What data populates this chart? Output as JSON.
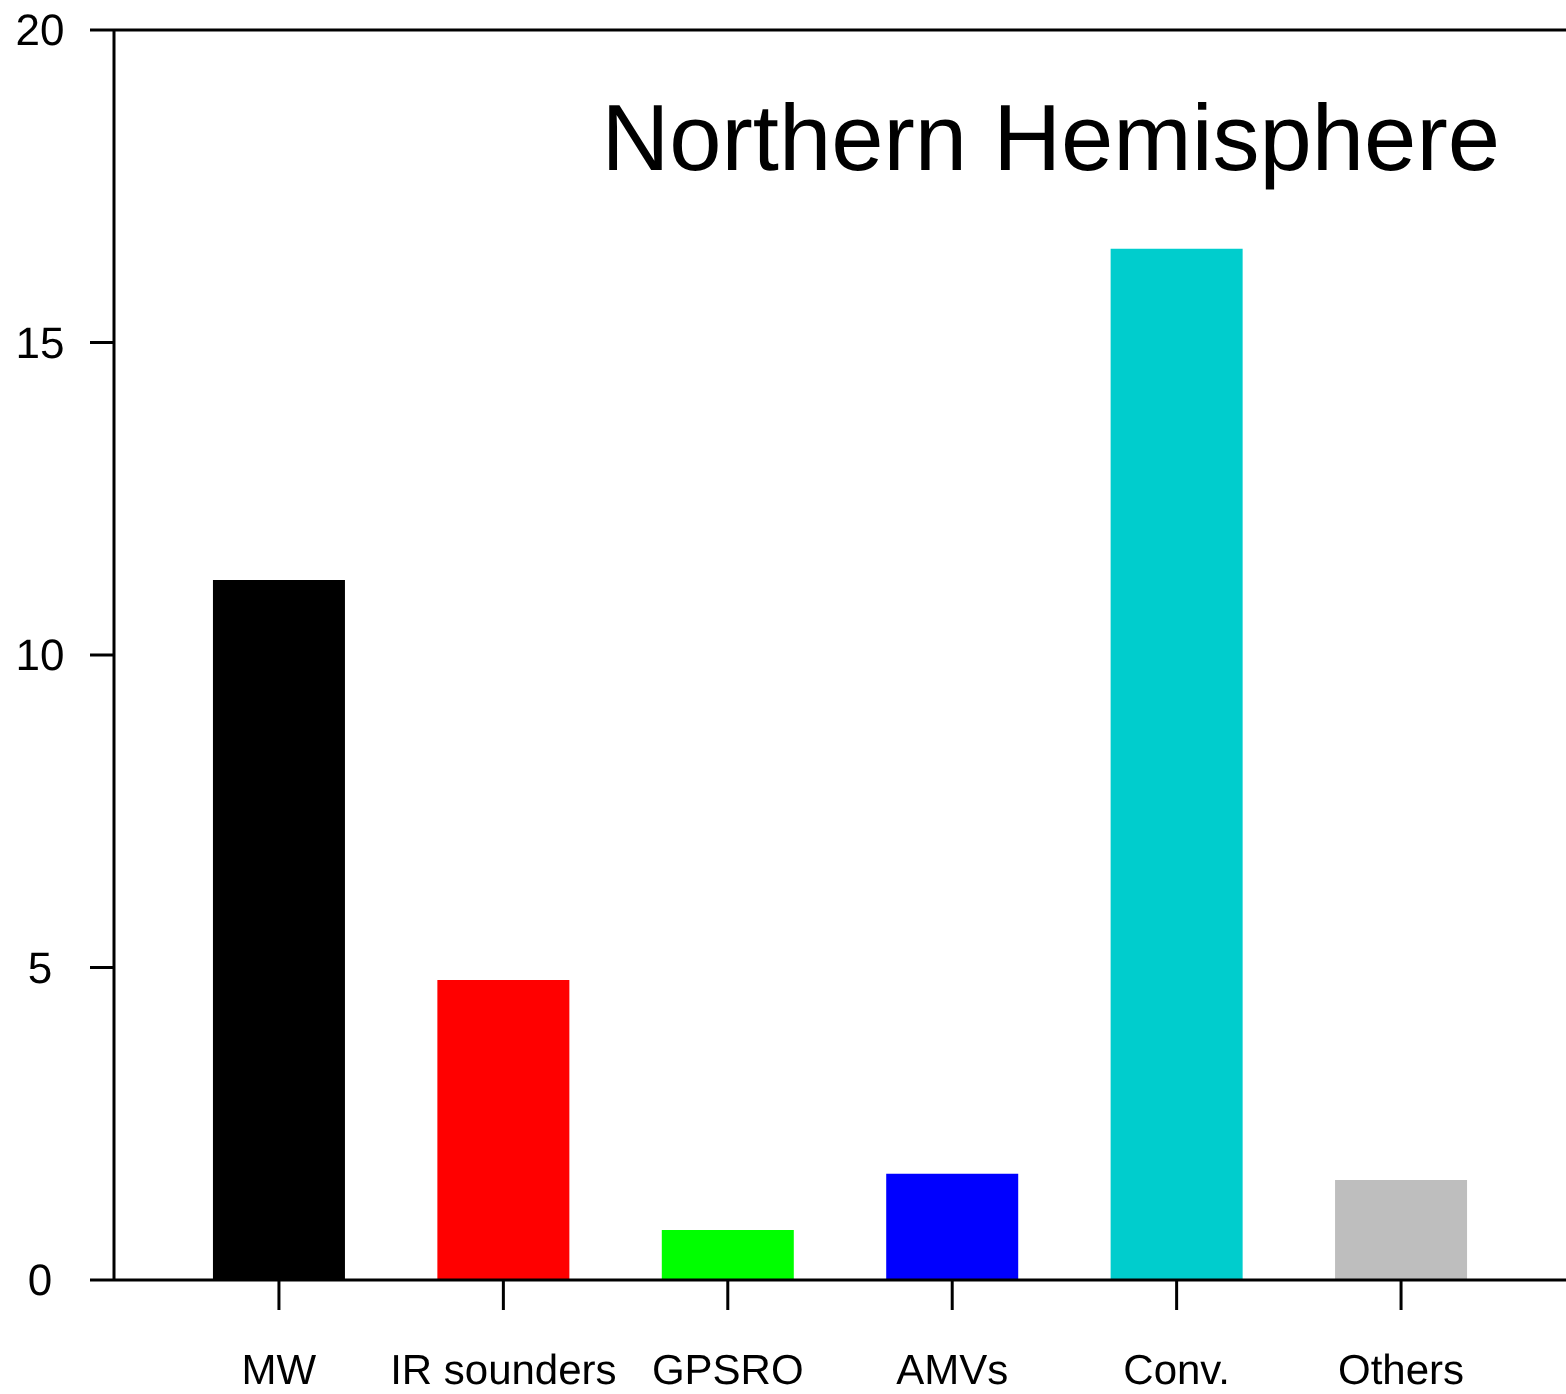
{
  "chart_data": {
    "type": "bar",
    "title": "Northern Hemisphere",
    "categories": [
      "MW",
      "IR sounders",
      "GPSRO",
      "AMVs",
      "Conv.",
      "Others"
    ],
    "values": [
      11.2,
      4.8,
      0.8,
      1.7,
      16.5,
      1.6
    ],
    "colors": [
      "#000000",
      "#ff0000",
      "#00ff00",
      "#0000ff",
      "#00cdcd",
      "#bebebe"
    ],
    "ylim": [
      0,
      20
    ],
    "yticks": [
      0,
      5,
      10,
      15,
      20
    ],
    "grid": false
  }
}
